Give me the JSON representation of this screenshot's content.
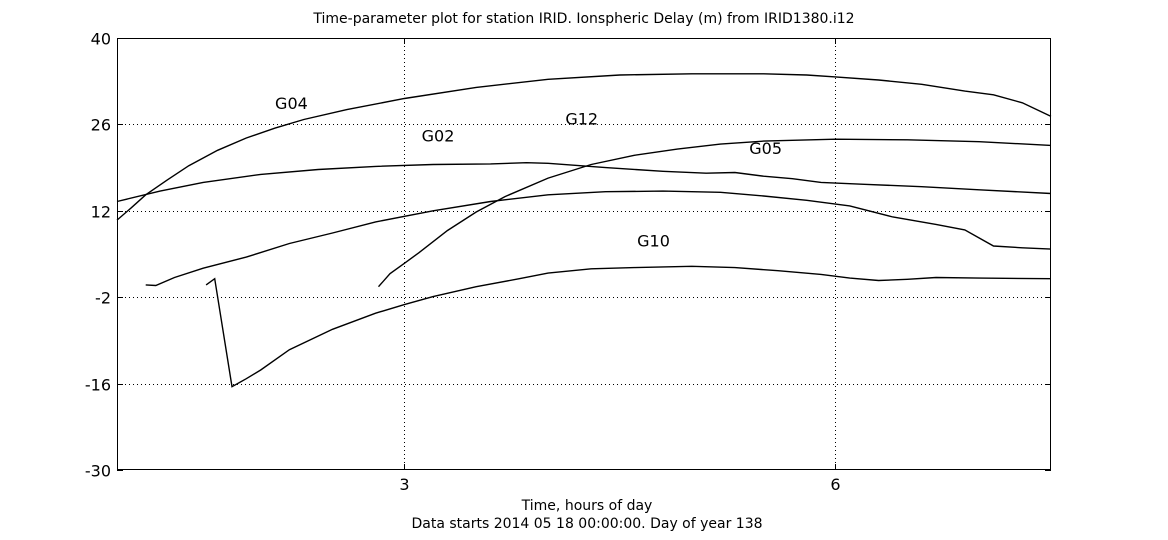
{
  "chart_data": {
    "type": "line",
    "title": "Time-parameter plot for station IRID.   Ionspheric Delay (m) from IRID1380.i12",
    "xlabel": "Time, hours of day",
    "xlabel2": "Data starts 2014 05 18 00:00:00.  Day of year 138",
    "ylabel": "",
    "xlim": [
      1.0,
      7.5
    ],
    "ylim": [
      -30,
      40
    ],
    "xticks": [
      3,
      6
    ],
    "xtick_labels": [
      "3",
      "6"
    ],
    "yticks": [
      40,
      26,
      12,
      -2,
      -16,
      -30
    ],
    "ytick_labels": [
      "40",
      "26",
      "12",
      "-2",
      "-16",
      "-30"
    ],
    "grid": true,
    "legend": "none",
    "series": [
      {
        "name": "G04",
        "label_at": [
          2.1,
          28.5
        ],
        "x": [
          1.0,
          1.1,
          1.2,
          1.35,
          1.5,
          1.7,
          1.9,
          2.1,
          2.3,
          2.6,
          3.0,
          3.5,
          4.0,
          4.5,
          5.0,
          5.5,
          5.8,
          6.0,
          6.3,
          6.6,
          6.9,
          7.1,
          7.3,
          7.5
        ],
        "y": [
          10.5,
          12.5,
          14.6,
          17.0,
          19.3,
          21.8,
          23.8,
          25.4,
          26.8,
          28.4,
          30.2,
          32.0,
          33.3,
          34.0,
          34.2,
          34.2,
          34.0,
          33.7,
          33.2,
          32.5,
          31.4,
          30.8,
          29.5,
          27.3
        ]
      },
      {
        "name": "G02",
        "label_at": [
          3.12,
          23.2
        ],
        "x": [
          1.0,
          1.3,
          1.6,
          2.0,
          2.4,
          2.8,
          3.2,
          3.6,
          3.85,
          4.0,
          4.4,
          4.8,
          5.1,
          5.3,
          5.5,
          5.7,
          5.9,
          6.2,
          6.6,
          7.0,
          7.5
        ],
        "y": [
          13.5,
          15.2,
          16.6,
          17.9,
          18.7,
          19.2,
          19.5,
          19.6,
          19.8,
          19.7,
          19.0,
          18.4,
          18.1,
          18.2,
          17.6,
          17.2,
          16.6,
          16.3,
          15.9,
          15.4,
          14.8
        ]
      },
      {
        "name": "G12",
        "label_at": [
          4.12,
          26.0
        ],
        "x": [
          2.82,
          2.9,
          3.0,
          3.1,
          3.3,
          3.5,
          3.7,
          4.0,
          4.3,
          4.6,
          4.9,
          5.2,
          5.5,
          6.0,
          6.5,
          7.0,
          7.5
        ],
        "y": [
          -0.3,
          1.8,
          3.5,
          5.2,
          8.8,
          11.8,
          14.3,
          17.3,
          19.5,
          21.0,
          22.0,
          22.8,
          23.3,
          23.6,
          23.5,
          23.2,
          22.6
        ]
      },
      {
        "name": "G05",
        "label_at": [
          5.4,
          21.2
        ],
        "x": [
          1.2,
          1.27,
          1.4,
          1.6,
          1.9,
          2.2,
          2.5,
          2.8,
          3.2,
          3.6,
          4.0,
          4.4,
          4.8,
          5.2,
          5.5,
          5.8,
          6.1,
          6.4,
          6.7,
          6.9,
          7.0,
          7.1,
          7.3,
          7.5
        ],
        "y": [
          0.0,
          -0.1,
          1.2,
          2.7,
          4.5,
          6.7,
          8.4,
          10.2,
          12.0,
          13.5,
          14.6,
          15.1,
          15.2,
          15.0,
          14.4,
          13.7,
          12.8,
          11.0,
          9.8,
          8.9,
          7.6,
          6.3,
          6.0,
          5.8
        ]
      },
      {
        "name": "G10",
        "label_at": [
          4.62,
          6.2
        ],
        "x": [
          1.62,
          1.68,
          1.8,
          1.9,
          2.0,
          2.2,
          2.5,
          2.8,
          3.0,
          3.2,
          3.5,
          3.8,
          4.0,
          4.3,
          4.6,
          5.0,
          5.3,
          5.6,
          5.9,
          6.1,
          6.3,
          6.5,
          6.7,
          7.0,
          7.5
        ],
        "y": [
          0.0,
          1.0,
          -16.5,
          -15.2,
          -13.8,
          -10.5,
          -7.2,
          -4.6,
          -3.2,
          -1.9,
          -0.3,
          1.0,
          1.9,
          2.6,
          2.8,
          3.0,
          2.8,
          2.3,
          1.7,
          1.1,
          0.7,
          0.9,
          1.2,
          1.1,
          1.0
        ]
      }
    ]
  }
}
